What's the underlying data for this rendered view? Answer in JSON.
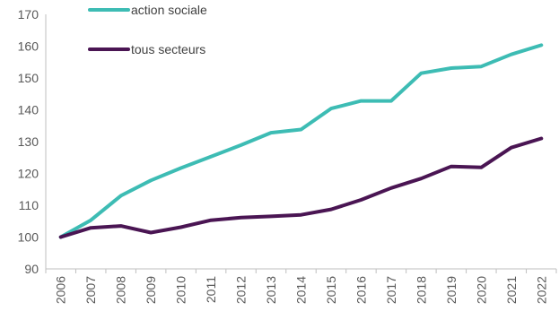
{
  "chart_data": {
    "type": "line",
    "title": "",
    "xlabel": "",
    "ylabel": "",
    "x": [
      "2006",
      "2007",
      "2008",
      "2009",
      "2010",
      "2011",
      "2012",
      "2013",
      "2014",
      "2015",
      "2016",
      "2017",
      "2018",
      "2019",
      "2020",
      "2021",
      "2022"
    ],
    "ylim": [
      90,
      170
    ],
    "yticks": [
      90,
      100,
      110,
      120,
      130,
      140,
      150,
      160,
      170
    ],
    "grid": false,
    "legend_position": "top-left",
    "series": [
      {
        "name": "action sociale",
        "color": "#3dbcb4",
        "values": [
          100,
          105.3,
          113,
          117.8,
          121.7,
          125.3,
          128.9,
          132.8,
          133.8,
          140.4,
          142.8,
          142.8,
          151.5,
          153.1,
          153.6,
          157.4,
          160.3
        ]
      },
      {
        "name": "tous secteurs",
        "color": "#4a1553",
        "values": [
          100,
          102.9,
          103.5,
          101.4,
          103.1,
          105.3,
          106.1,
          106.5,
          107,
          108.7,
          111.7,
          115.4,
          118.4,
          122.2,
          121.9,
          128.1,
          131
        ]
      }
    ]
  }
}
